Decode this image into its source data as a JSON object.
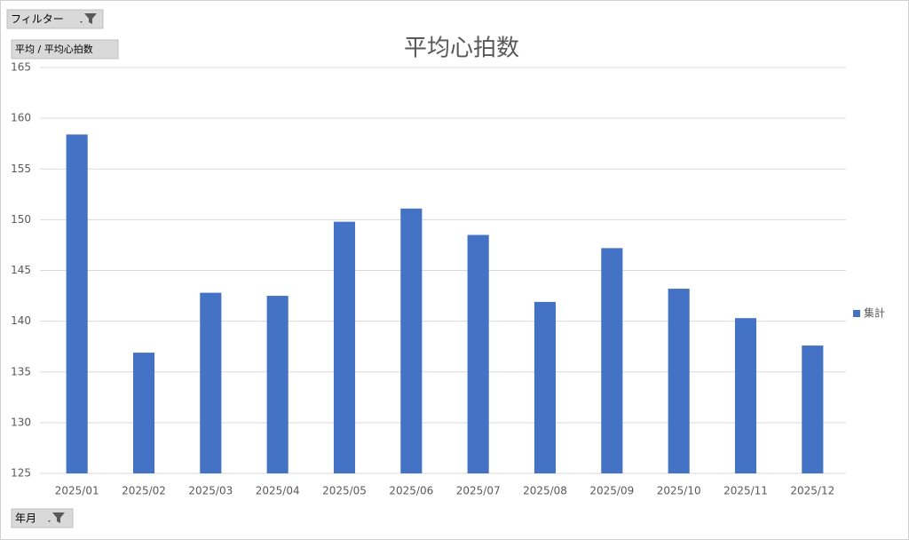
{
  "buttons": {
    "filter": "フィルター",
    "value": "平均 / 平均心拍数",
    "axis": "年月"
  },
  "chart_data": {
    "type": "bar",
    "title": "平均心拍数",
    "categories": [
      "2025/01",
      "2025/02",
      "2025/03",
      "2025/04",
      "2025/05",
      "2025/06",
      "2025/07",
      "2025/08",
      "2025/09",
      "2025/10",
      "2025/11",
      "2025/12"
    ],
    "series": [
      {
        "name": "集計",
        "color": "#4472c4",
        "values": [
          158.4,
          136.9,
          142.8,
          142.5,
          149.8,
          151.1,
          148.5,
          141.9,
          147.2,
          143.2,
          140.3,
          137.6
        ]
      }
    ],
    "ylim": [
      125,
      165
    ],
    "yticks": [
      125,
      130,
      135,
      140,
      145,
      150,
      155,
      160,
      165
    ],
    "grid": true,
    "legend": "right"
  }
}
